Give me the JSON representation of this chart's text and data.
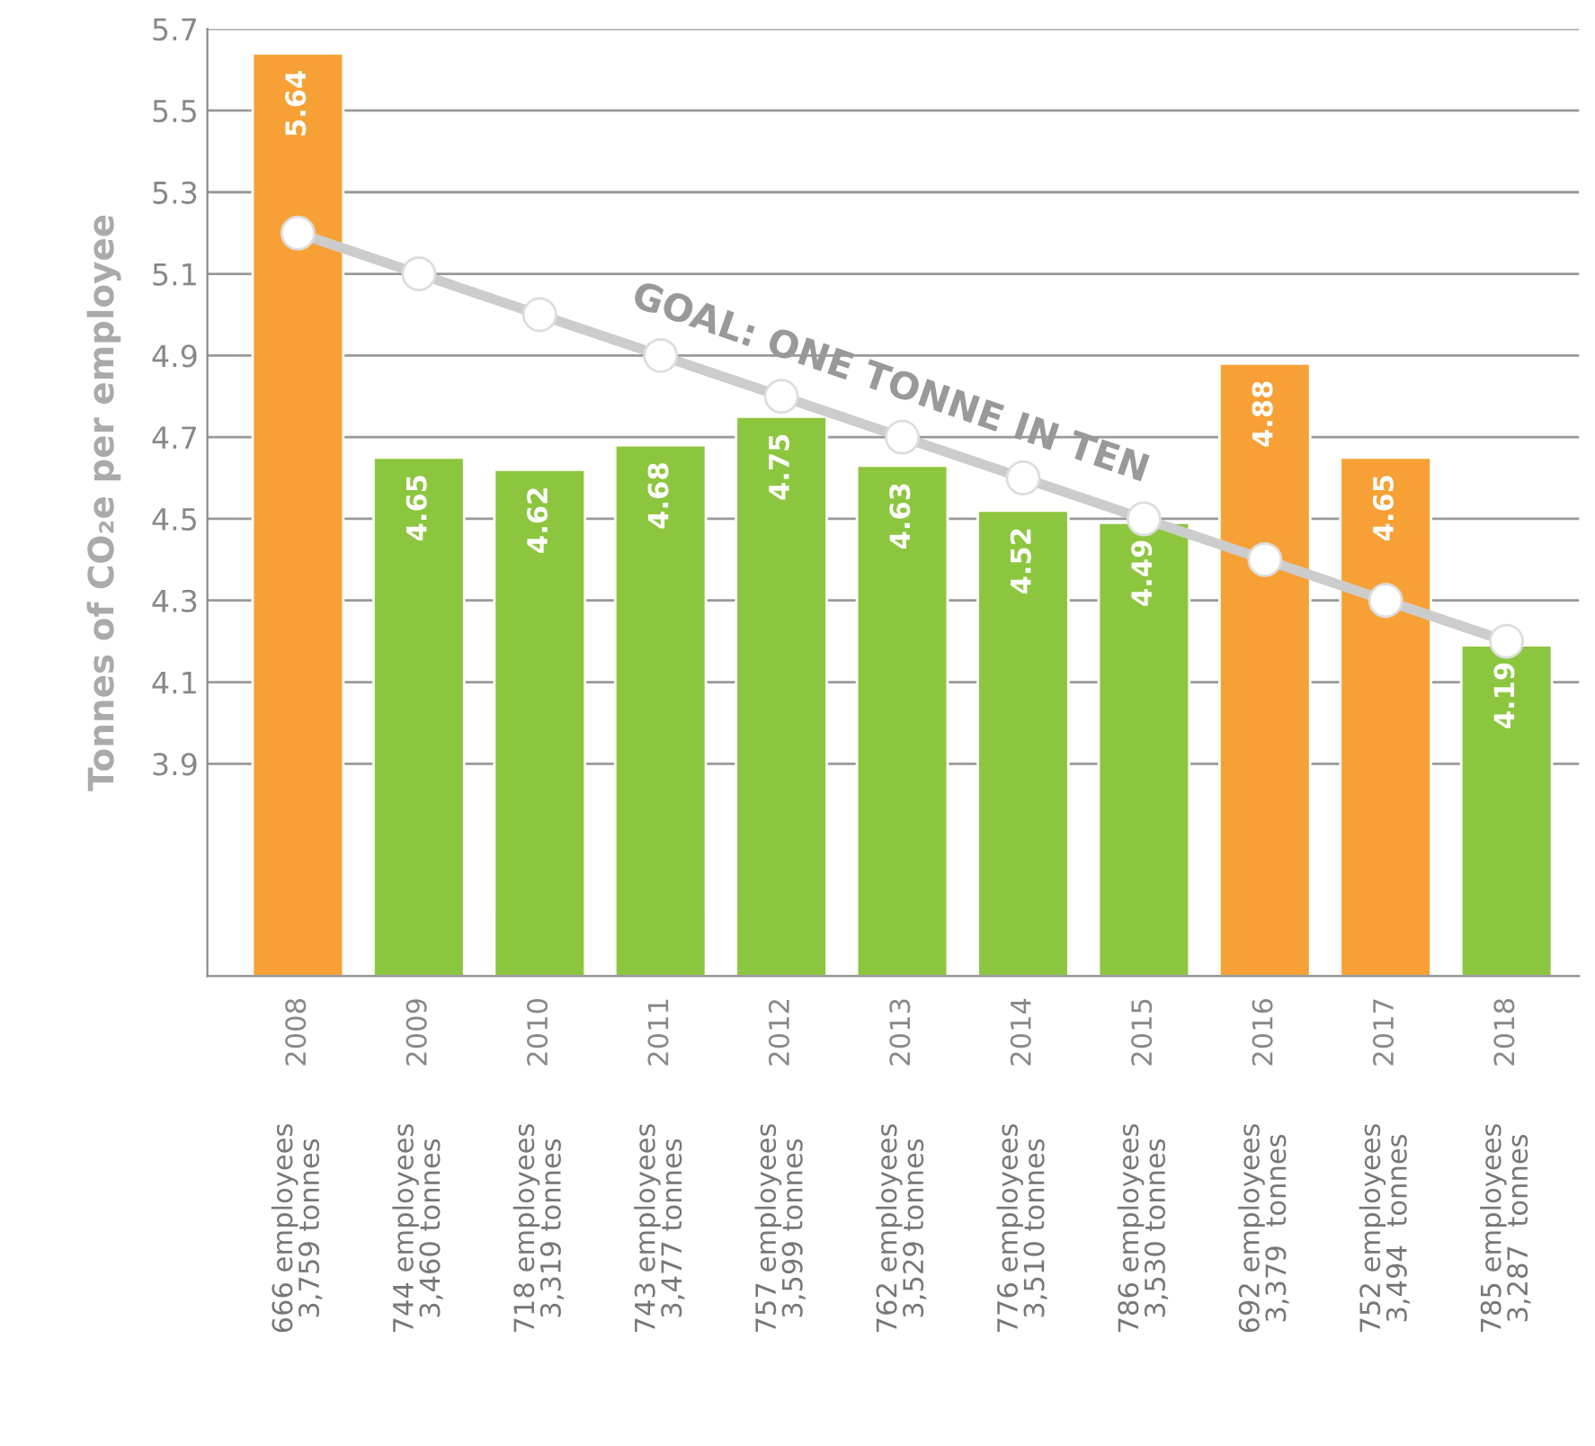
{
  "chart_data": {
    "type": "bar",
    "ylabel": "Tonnes of CO₂e per employee",
    "categories": [
      "2008",
      "2009",
      "2010",
      "2011",
      "2012",
      "2013",
      "2014",
      "2015",
      "2016",
      "2017",
      "2018"
    ],
    "series": [
      {
        "values": [
          5.64,
          4.65,
          4.62,
          4.68,
          4.75,
          4.63,
          4.52,
          4.49,
          4.88,
          4.65,
          4.19
        ],
        "value_labels": [
          "5.64",
          "4.65",
          "4.62",
          "4.68",
          "4.75",
          "4.63",
          "4.52",
          "4.49",
          "4.88",
          "4.65",
          "4.19"
        ],
        "colors": [
          "#f7a035",
          "#8cc63f",
          "#8cc63f",
          "#8cc63f",
          "#8cc63f",
          "#8cc63f",
          "#8cc63f",
          "#8cc63f",
          "#f7a035",
          "#f7a035",
          "#8cc63f"
        ]
      },
      {
        "type": "line",
        "color": "#cccccc",
        "values": [
          5.2,
          5.1,
          5.0,
          4.9,
          4.8,
          4.7,
          4.6,
          4.5,
          4.4,
          4.3,
          4.2
        ]
      }
    ],
    "marker": "circle",
    "ylim": [
      3.38,
      5.7
    ],
    "yticks": [
      3.9,
      4.1,
      4.3,
      4.5,
      4.7,
      4.9,
      5.1,
      5.3,
      5.5,
      5.7
    ],
    "grid": "y",
    "legend": false,
    "annotations": [
      {
        "text": "GOAL: ONE TONNE IN TEN",
        "x": "2013",
        "y": 4.7
      },
      "666 employees\n3,759 tonnes",
      "744 employees\n3,460 tonnes",
      "718 employees\n3,319 tonnes",
      "743 employees\n3,477 tonnes",
      "757 employees\n3,599 tonnes",
      "762 employees\n3,529 tonnes",
      "776 employees\n3,510 tonnes",
      "786 employees\n3,530 tonnes",
      "692 employees\n3,379  tonnes",
      "752 employees\n3,494  tonnes",
      "785 employees\n3,287  tonnes"
    ]
  }
}
